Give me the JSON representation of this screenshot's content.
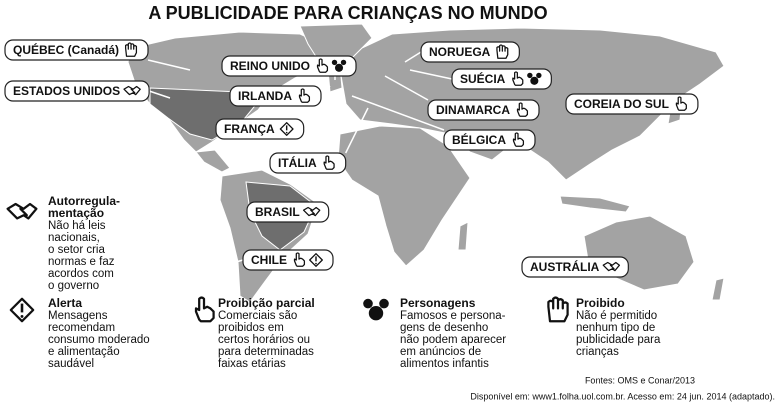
{
  "title": "A PUBLICIDADE PARA CRIANÇAS NO MUNDO",
  "countries": [
    {
      "label": "QUÉBEC (Canadá)",
      "icons": [
        4
      ]
    },
    {
      "label": "REINO UNIDO",
      "icons": [
        2,
        3
      ]
    },
    {
      "label": "NORUEGA",
      "icons": [
        4
      ]
    },
    {
      "label": "SUÉCIA",
      "icons": [
        2,
        3
      ]
    },
    {
      "label": "ESTADOS UNIDOS",
      "icons": [
        0
      ]
    },
    {
      "label": "IRLANDA",
      "icons": [
        2
      ]
    },
    {
      "label": "DINAMARCA",
      "icons": [
        2
      ]
    },
    {
      "label": "COREIA DO SUL",
      "icons": [
        2
      ]
    },
    {
      "label": "FRANÇA",
      "icons": [
        1
      ]
    },
    {
      "label": "BÉLGICA",
      "icons": [
        2
      ]
    },
    {
      "label": "ITÁLIA",
      "icons": [
        2
      ]
    },
    {
      "label": "BRASIL",
      "icons": [
        0
      ]
    },
    {
      "label": "CHILE",
      "icons": [
        2,
        1
      ]
    },
    {
      "label": "AUSTRÁLIA",
      "icons": [
        0
      ]
    }
  ],
  "legend": [
    {
      "title": [
        "Autorregula-",
        "mentação"
      ],
      "text": [
        "Não há leis",
        "nacionais,",
        "o setor cria",
        "normas e faz",
        "acordos com",
        "o governo"
      ]
    },
    {
      "title": [
        "Alerta"
      ],
      "text": [
        "Mensagens",
        "recomendam",
        "consumo moderado",
        "e alimentação",
        "saudável"
      ]
    },
    {
      "title": [
        "Proibição parcial"
      ],
      "text": [
        "Comerciais são",
        "proibidos em",
        "certos horários ou",
        "para determinadas",
        "faixas etárias"
      ]
    },
    {
      "title": [
        "Personagens"
      ],
      "text": [
        "Famosos e persona-",
        "gens de desenho",
        "não podem aparecer",
        "em anúncios de",
        "alimentos infantis"
      ]
    },
    {
      "title": [
        "Proibido"
      ],
      "text": [
        "Não é permitido",
        "nenhum tipo de",
        "publicidade para",
        "crianças"
      ]
    }
  ],
  "sources": "Fontes: OMS e Conar/2013",
  "available": "Disponível em: www1.folha.uol.com.br. Acesso em: 24 jun. 2014 (adaptado)."
}
